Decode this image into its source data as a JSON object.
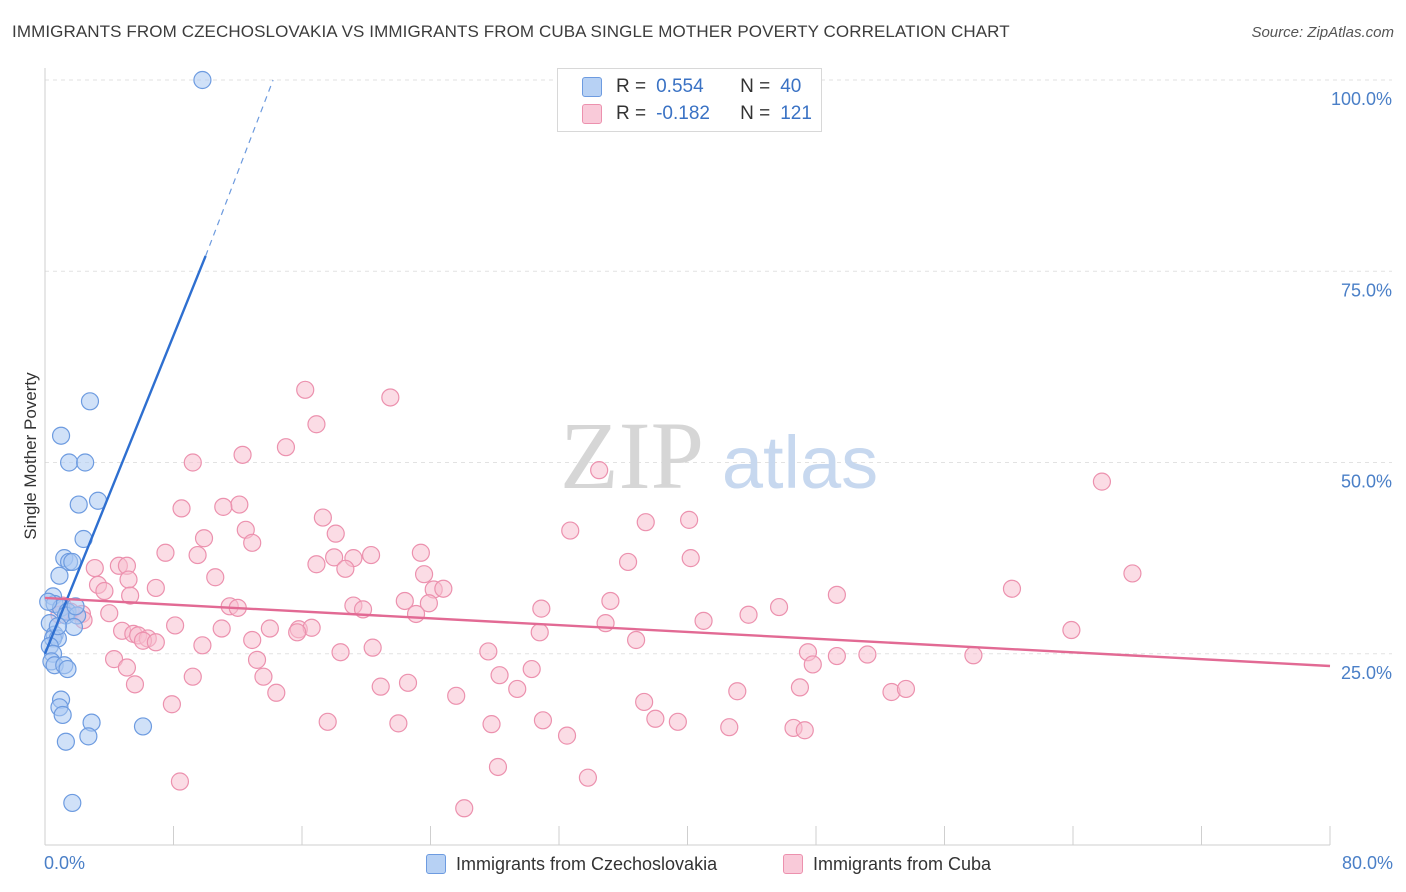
{
  "title": "IMMIGRANTS FROM CZECHOSLOVAKIA VS IMMIGRANTS FROM CUBA SINGLE MOTHER POVERTY CORRELATION CHART",
  "source": "Source: ZipAtlas.com",
  "watermark": {
    "zip": "ZIP",
    "atlas": "atlas"
  },
  "legend": {
    "rows": [
      {
        "r_label": "R =",
        "r_value": "0.554",
        "n_label": "N =",
        "n_value": "40"
      },
      {
        "r_label": "R =",
        "r_value": "-0.182",
        "n_label": "N =",
        "n_value": "121"
      }
    ]
  },
  "bottom_legend": [
    "Immigrants from Czechoslovakia",
    "Immigrants from Cuba"
  ],
  "colors": {
    "blue_fill": "#a9c8f2",
    "blue_stroke": "#6d9be0",
    "blue_line": "#2e6fd0",
    "pink_fill": "#f7bfd0",
    "pink_stroke": "#ec91ae",
    "pink_line": "#e26a94",
    "tick_text": "#4a7fc7",
    "grid": "#e2e2e2"
  },
  "chart_data": {
    "type": "scatter",
    "ylabel": "Single Mother Poverty",
    "xlim": [
      0,
      80
    ],
    "ylim": [
      0,
      105
    ],
    "x_tick_labels": [
      "0.0%",
      "80.0%"
    ],
    "y_ticks": [
      25,
      50,
      75,
      100
    ],
    "y_tick_labels": [
      "25.0%",
      "50.0%",
      "75.0%",
      "100.0%"
    ],
    "grid": true,
    "series": [
      {
        "name": "Immigrants from Czechoslovakia",
        "color": "blue",
        "points": [
          [
            9.8,
            100
          ],
          [
            2.8,
            58
          ],
          [
            1.0,
            53.5
          ],
          [
            1.5,
            50
          ],
          [
            2.5,
            50
          ],
          [
            3.3,
            45
          ],
          [
            2.1,
            44.5
          ],
          [
            2.4,
            40
          ],
          [
            1.2,
            37.5
          ],
          [
            1.5,
            37
          ],
          [
            1.7,
            37
          ],
          [
            0.9,
            35.2
          ],
          [
            0.5,
            32.5
          ],
          [
            0.6,
            31.5
          ],
          [
            1.0,
            31
          ],
          [
            1.4,
            30.5
          ],
          [
            1.3,
            30
          ],
          [
            2.0,
            30
          ],
          [
            0.3,
            29
          ],
          [
            1.8,
            28.5
          ],
          [
            0.6,
            27.5
          ],
          [
            0.5,
            27
          ],
          [
            0.8,
            27
          ],
          [
            0.3,
            26
          ],
          [
            0.5,
            25
          ],
          [
            0.4,
            24
          ],
          [
            0.6,
            23.5
          ],
          [
            1.2,
            23.5
          ],
          [
            1.4,
            23
          ],
          [
            1.0,
            19
          ],
          [
            0.9,
            18
          ],
          [
            1.1,
            17
          ],
          [
            2.9,
            16
          ],
          [
            6.1,
            15.5
          ],
          [
            2.7,
            14.2
          ],
          [
            1.3,
            13.5
          ],
          [
            1.7,
            5.5
          ],
          [
            0.2,
            31.8
          ],
          [
            0.8,
            28.6
          ],
          [
            1.9,
            31.2
          ]
        ],
        "trend": {
          "x0": 0,
          "y0": 25,
          "x1": 10,
          "y1": 77,
          "dash_x1": 14.2,
          "dash_y1": 100
        }
      },
      {
        "name": "Immigrants from Cuba",
        "color": "pink",
        "points": [
          [
            16.2,
            59.5
          ],
          [
            21.5,
            58.5
          ],
          [
            16.9,
            55
          ],
          [
            15.0,
            52
          ],
          [
            12.3,
            51
          ],
          [
            9.2,
            50
          ],
          [
            34.5,
            49
          ],
          [
            65.8,
            47.5
          ],
          [
            12.1,
            44.5
          ],
          [
            11.1,
            44.2
          ],
          [
            8.5,
            44
          ],
          [
            17.3,
            42.8
          ],
          [
            37.4,
            42.2
          ],
          [
            40.1,
            42.5
          ],
          [
            12.5,
            41.2
          ],
          [
            18.1,
            40.7
          ],
          [
            32.7,
            41.1
          ],
          [
            9.9,
            40.1
          ],
          [
            12.9,
            39.5
          ],
          [
            7.5,
            38.2
          ],
          [
            9.5,
            37.9
          ],
          [
            18.0,
            37.6
          ],
          [
            19.2,
            37.5
          ],
          [
            20.3,
            37.9
          ],
          [
            23.4,
            38.2
          ],
          [
            36.3,
            37.0
          ],
          [
            40.2,
            37.5
          ],
          [
            16.9,
            36.7
          ],
          [
            4.6,
            36.5
          ],
          [
            3.1,
            36.2
          ],
          [
            5.1,
            36.5
          ],
          [
            18.7,
            36.1
          ],
          [
            23.6,
            35.4
          ],
          [
            67.7,
            35.5
          ],
          [
            10.6,
            35.0
          ],
          [
            5.2,
            34.7
          ],
          [
            3.3,
            34.0
          ],
          [
            6.9,
            33.6
          ],
          [
            24.2,
            33.4
          ],
          [
            24.8,
            33.5
          ],
          [
            60.2,
            33.5
          ],
          [
            49.3,
            32.7
          ],
          [
            3.7,
            33.2
          ],
          [
            5.3,
            32.6
          ],
          [
            22.4,
            31.9
          ],
          [
            23.9,
            31.6
          ],
          [
            35.2,
            31.9
          ],
          [
            19.2,
            31.3
          ],
          [
            11.5,
            31.2
          ],
          [
            12.0,
            31.0
          ],
          [
            1.1,
            31.3
          ],
          [
            45.7,
            31.1
          ],
          [
            19.8,
            30.8
          ],
          [
            30.9,
            30.9
          ],
          [
            1.6,
            30.5
          ],
          [
            0.9,
            30.1
          ],
          [
            2.3,
            30.2
          ],
          [
            4.0,
            30.3
          ],
          [
            43.8,
            30.1
          ],
          [
            2.4,
            29.4
          ],
          [
            8.1,
            28.7
          ],
          [
            14.0,
            28.3
          ],
          [
            41.0,
            29.3
          ],
          [
            34.9,
            29.0
          ],
          [
            15.8,
            28.2
          ],
          [
            11.0,
            28.3
          ],
          [
            4.8,
            28.0
          ],
          [
            16.6,
            28.4
          ],
          [
            30.8,
            27.8
          ],
          [
            5.5,
            27.6
          ],
          [
            5.8,
            27.4
          ],
          [
            6.4,
            27.0
          ],
          [
            6.1,
            26.7
          ],
          [
            12.9,
            26.8
          ],
          [
            6.9,
            26.5
          ],
          [
            9.8,
            26.1
          ],
          [
            20.4,
            25.8
          ],
          [
            18.4,
            25.2
          ],
          [
            27.6,
            25.3
          ],
          [
            36.8,
            26.8
          ],
          [
            47.5,
            25.2
          ],
          [
            49.3,
            24.7
          ],
          [
            51.2,
            24.9
          ],
          [
            57.8,
            24.8
          ],
          [
            63.9,
            28.1
          ],
          [
            4.3,
            24.3
          ],
          [
            13.2,
            24.2
          ],
          [
            15.7,
            27.8
          ],
          [
            47.8,
            23.6
          ],
          [
            5.1,
            23.2
          ],
          [
            30.3,
            23.0
          ],
          [
            13.6,
            22.0
          ],
          [
            28.3,
            22.2
          ],
          [
            9.2,
            22.0
          ],
          [
            5.6,
            21.0
          ],
          [
            20.9,
            20.7
          ],
          [
            22.6,
            21.2
          ],
          [
            29.4,
            20.4
          ],
          [
            43.1,
            20.1
          ],
          [
            47.0,
            20.6
          ],
          [
            14.4,
            19.9
          ],
          [
            25.6,
            19.5
          ],
          [
            37.3,
            18.7
          ],
          [
            52.7,
            20.0
          ],
          [
            53.6,
            20.4
          ],
          [
            7.9,
            18.4
          ],
          [
            17.6,
            16.1
          ],
          [
            22.0,
            15.9
          ],
          [
            27.8,
            15.8
          ],
          [
            31.0,
            16.3
          ],
          [
            38.0,
            16.5
          ],
          [
            39.4,
            16.1
          ],
          [
            42.6,
            15.4
          ],
          [
            46.6,
            15.3
          ],
          [
            47.3,
            15.0
          ],
          [
            32.5,
            14.3
          ],
          [
            28.2,
            10.2
          ],
          [
            8.4,
            8.3
          ],
          [
            33.8,
            8.8
          ],
          [
            26.1,
            4.8
          ],
          [
            23.1,
            30.2
          ]
        ],
        "trend": {
          "x0": 0,
          "y0": 32.3,
          "x1": 80,
          "y1": 23.4
        }
      }
    ]
  }
}
